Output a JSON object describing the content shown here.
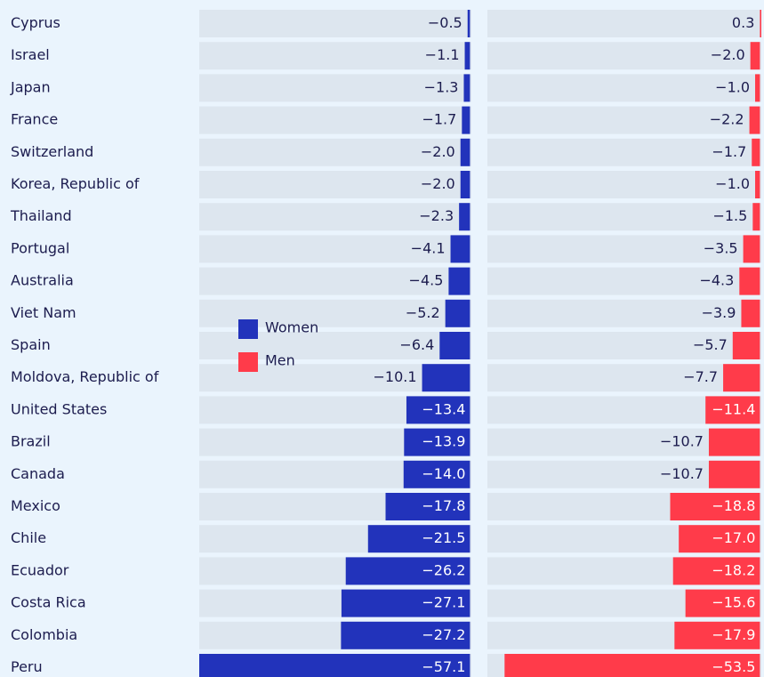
{
  "chart_data": {
    "type": "bar",
    "orientation": "horizontal",
    "categories": [
      "Cyprus",
      "Israel",
      "Japan",
      "France",
      "Switzerland",
      "Korea, Republic of",
      "Thailand",
      "Portugal",
      "Australia",
      "Viet Nam",
      "Spain",
      "Moldova, Republic of",
      "United States",
      "Brazil",
      "Canada",
      "Mexico",
      "Chile",
      "Ecuador",
      "Costa Rica",
      "Colombia",
      "Peru"
    ],
    "series": [
      {
        "name": "Women",
        "color": "#2233bb",
        "values": [
          -0.5,
          -1.1,
          -1.3,
          -1.7,
          -2.0,
          -2.0,
          -2.3,
          -4.1,
          -4.5,
          -5.2,
          -6.4,
          -10.1,
          -13.4,
          -13.9,
          -14.0,
          -17.8,
          -21.5,
          -26.2,
          -27.1,
          -27.2,
          -57.1
        ],
        "value_labels": [
          "−0.5",
          "−1.1",
          "−1.3",
          "−1.7",
          "−2.0",
          "−2.0",
          "−2.3",
          "−4.1",
          "−4.5",
          "−5.2",
          "−6.4",
          "−10.1",
          "−13.4",
          "−13.9",
          "−14.0",
          "−17.8",
          "−21.5",
          "−26.2",
          "−27.1",
          "−27.2",
          "−57.1"
        ]
      },
      {
        "name": "Men",
        "color": "#ff3b4a",
        "values": [
          0.3,
          -2.0,
          -1.0,
          -2.2,
          -1.7,
          -1.0,
          -1.5,
          -3.5,
          -4.3,
          -3.9,
          -5.7,
          -7.7,
          -11.4,
          -10.7,
          -10.7,
          -18.8,
          -17.0,
          -18.2,
          -15.6,
          -17.9,
          -53.5
        ],
        "value_labels": [
          "0.3",
          "−2.0",
          "−1.0",
          "−2.2",
          "−1.7",
          "−1.0",
          "−1.5",
          "−3.5",
          "−4.3",
          "−3.9",
          "−5.7",
          "−7.7",
          "−11.4",
          "−10.7",
          "−10.7",
          "−18.8",
          "−17.0",
          "−18.2",
          "−15.6",
          "−17.9",
          "−53.5"
        ]
      }
    ],
    "xlim": [
      -57.1,
      0.3
    ]
  }
}
